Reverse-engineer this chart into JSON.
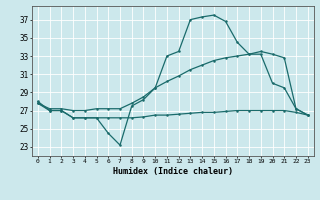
{
  "xlabel": "Humidex (Indice chaleur)",
  "background_color": "#cce8ec",
  "line_color": "#1a6b6b",
  "xlim": [
    -0.5,
    23.5
  ],
  "ylim": [
    22.0,
    38.5
  ],
  "yticks": [
    23,
    25,
    27,
    29,
    31,
    33,
    35,
    37
  ],
  "xticks": [
    0,
    1,
    2,
    3,
    4,
    5,
    6,
    7,
    8,
    9,
    10,
    11,
    12,
    13,
    14,
    15,
    16,
    17,
    18,
    19,
    20,
    21,
    22,
    23
  ],
  "line1": [
    28.0,
    27.0,
    27.0,
    26.2,
    26.2,
    26.2,
    24.5,
    23.2,
    27.5,
    28.2,
    29.5,
    33.0,
    33.5,
    37.0,
    37.3,
    37.5,
    36.8,
    34.5,
    33.2,
    33.2,
    30.0,
    29.5,
    27.2,
    26.5
  ],
  "line2": [
    27.8,
    27.2,
    27.2,
    27.0,
    27.0,
    27.2,
    27.2,
    27.2,
    27.8,
    28.5,
    29.5,
    30.2,
    30.8,
    31.5,
    32.0,
    32.5,
    32.8,
    33.0,
    33.2,
    33.5,
    33.2,
    32.8,
    27.2,
    26.5
  ],
  "line3": [
    27.8,
    27.0,
    27.0,
    26.2,
    26.2,
    26.2,
    26.2,
    26.2,
    26.2,
    26.3,
    26.5,
    26.5,
    26.6,
    26.7,
    26.8,
    26.8,
    26.9,
    27.0,
    27.0,
    27.0,
    27.0,
    27.0,
    26.8,
    26.5
  ]
}
